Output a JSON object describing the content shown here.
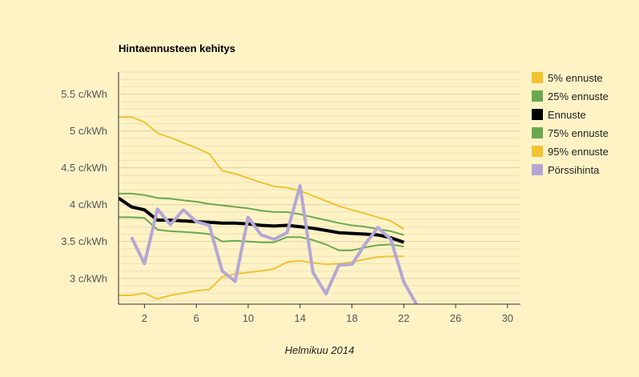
{
  "chart_data": {
    "type": "line",
    "title": "Hintaennusteen kehitys",
    "xlabel": "Helmikuu 2014",
    "ylabel": "",
    "xlim": [
      0,
      31
    ],
    "ylim": [
      2.65,
      5.8
    ],
    "x_ticks": [
      2,
      6,
      10,
      14,
      18,
      22,
      26,
      30
    ],
    "y_ticks": [
      {
        "value": 3.0,
        "label": "3 c/kWh"
      },
      {
        "value": 3.5,
        "label": "3.5 c/kWh"
      },
      {
        "value": 4.0,
        "label": "4 c/kWh"
      },
      {
        "value": 4.5,
        "label": "4.5 c/kWh"
      },
      {
        "value": 5.0,
        "label": "5 c/kWh"
      },
      {
        "value": 5.5,
        "label": "5.5 c/kWh"
      }
    ],
    "grid": "horizontal",
    "legend_position": "right",
    "series": [
      {
        "name": "5% ennuste",
        "color": "#f1c232",
        "width": 2,
        "x": [
          0,
          1,
          2,
          3,
          4,
          5,
          6,
          7,
          8,
          9,
          10,
          11,
          12,
          13,
          14,
          15,
          16,
          17,
          18,
          19,
          20,
          21,
          22
        ],
        "y": [
          2.77,
          2.77,
          2.8,
          2.72,
          2.77,
          2.8,
          2.83,
          2.85,
          3.02,
          3.06,
          3.08,
          3.1,
          3.13,
          3.22,
          3.24,
          3.21,
          3.19,
          3.2,
          3.22,
          3.26,
          3.29,
          3.3,
          3.3
        ]
      },
      {
        "name": "25% ennuste",
        "color": "#6aa84f",
        "width": 2,
        "x": [
          0,
          1,
          2,
          3,
          4,
          5,
          6,
          7,
          8,
          9,
          10,
          11,
          12,
          13,
          14,
          15,
          16,
          17,
          18,
          19,
          20,
          21,
          22
        ],
        "y": [
          3.83,
          3.83,
          3.82,
          3.66,
          3.64,
          3.63,
          3.62,
          3.6,
          3.5,
          3.51,
          3.5,
          3.49,
          3.49,
          3.56,
          3.56,
          3.52,
          3.46,
          3.38,
          3.38,
          3.42,
          3.45,
          3.46,
          3.43
        ]
      },
      {
        "name": "Ennuste",
        "color": "#000000",
        "width": 4,
        "x": [
          0,
          1,
          2,
          3,
          4,
          5,
          6,
          7,
          8,
          9,
          10,
          11,
          12,
          13,
          14,
          15,
          16,
          17,
          18,
          19,
          20,
          21,
          22
        ],
        "y": [
          4.09,
          3.97,
          3.93,
          3.79,
          3.79,
          3.78,
          3.77,
          3.76,
          3.75,
          3.75,
          3.74,
          3.72,
          3.71,
          3.72,
          3.7,
          3.68,
          3.65,
          3.62,
          3.61,
          3.6,
          3.59,
          3.55,
          3.49
        ]
      },
      {
        "name": "75% ennuste",
        "color": "#6aa84f",
        "width": 2,
        "x": [
          0,
          1,
          2,
          3,
          4,
          5,
          6,
          7,
          8,
          9,
          10,
          11,
          12,
          13,
          14,
          15,
          16,
          17,
          18,
          19,
          20,
          21,
          22
        ],
        "y": [
          4.15,
          4.15,
          4.13,
          4.09,
          4.08,
          4.06,
          4.04,
          4.01,
          3.99,
          3.97,
          3.95,
          3.92,
          3.9,
          3.9,
          3.87,
          3.83,
          3.79,
          3.75,
          3.72,
          3.7,
          3.67,
          3.64,
          3.59
        ]
      },
      {
        "name": "95% ennuste",
        "color": "#f1c232",
        "width": 2,
        "x": [
          0,
          1,
          2,
          3,
          4,
          5,
          6,
          7,
          8,
          9,
          10,
          11,
          12,
          13,
          14,
          15,
          16,
          17,
          18,
          19,
          20,
          21,
          22
        ],
        "y": [
          5.19,
          5.19,
          5.12,
          4.97,
          4.91,
          4.84,
          4.77,
          4.69,
          4.46,
          4.42,
          4.36,
          4.3,
          4.25,
          4.23,
          4.19,
          4.12,
          4.05,
          3.98,
          3.93,
          3.88,
          3.83,
          3.78,
          3.67
        ]
      },
      {
        "name": "Pörssihinta",
        "color": "#b4a7d6",
        "width": 4,
        "x": [
          1,
          2,
          3,
          4,
          5,
          6,
          7,
          8,
          9,
          10,
          11,
          12,
          13,
          14,
          15,
          16,
          17,
          18,
          19,
          20,
          21,
          22,
          23
        ],
        "y": [
          3.56,
          3.2,
          3.94,
          3.73,
          3.93,
          3.77,
          3.72,
          3.1,
          2.96,
          3.83,
          3.59,
          3.53,
          3.62,
          4.26,
          3.08,
          2.79,
          3.18,
          3.19,
          3.46,
          3.69,
          3.53,
          2.95,
          2.64
        ]
      }
    ]
  }
}
